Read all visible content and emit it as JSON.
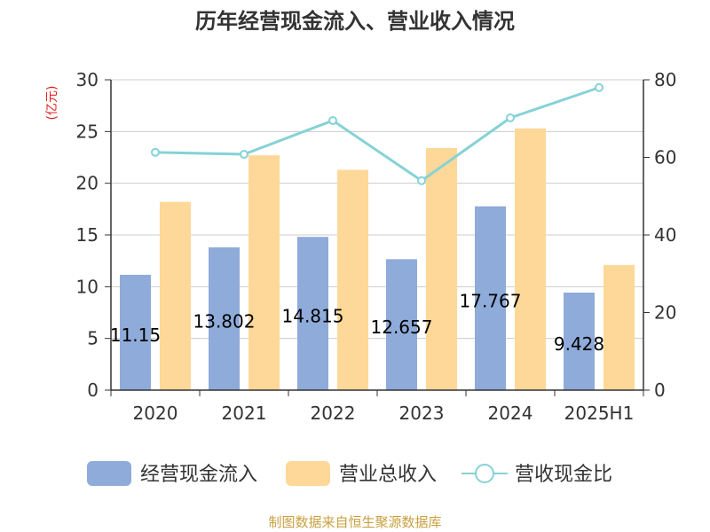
{
  "chart_data": {
    "type": "bar",
    "title": "历年经营现金流入、营业收入情况",
    "categories": [
      "2020",
      "2021",
      "2022",
      "2023",
      "2024",
      "2025H1"
    ],
    "series": [
      {
        "name": "经营现金流入",
        "axis": "left",
        "color": "#8eabd9",
        "values": [
          11.15,
          13.802,
          14.815,
          12.657,
          17.767,
          9.428
        ],
        "labels": [
          "11.15",
          "13.802",
          "14.815",
          "12.657",
          "17.767",
          "9.428"
        ]
      },
      {
        "name": "营业总收入",
        "axis": "left",
        "color": "#fed898",
        "values": [
          18.2,
          22.7,
          21.3,
          23.4,
          25.3,
          12.1
        ]
      },
      {
        "name": "营收现金比",
        "axis": "right",
        "type": "line",
        "color": "#86d2d6",
        "values": [
          61.3,
          60.8,
          69.5,
          54.0,
          70.2,
          78.0
        ]
      }
    ],
    "left_axis": {
      "unit_label": "(亿元)",
      "min": 0,
      "max": 30,
      "ticks": [
        "0",
        "5",
        "10",
        "15",
        "20",
        "25",
        "30"
      ]
    },
    "right_axis": {
      "min": 0,
      "max": 80,
      "ticks": [
        "0",
        "20",
        "40",
        "60",
        "80"
      ]
    },
    "grid": true,
    "legend_position": "bottom"
  },
  "source_text": "制图数据来自恒生聚源数据库"
}
